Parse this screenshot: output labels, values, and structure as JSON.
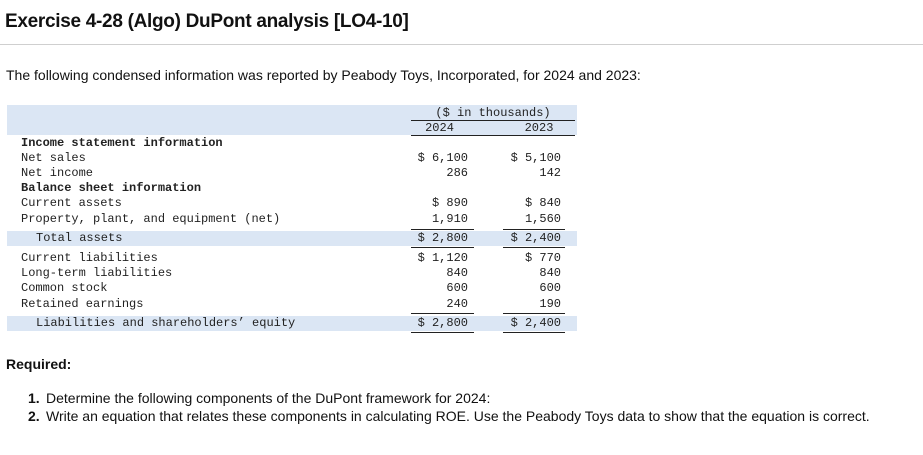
{
  "header": {
    "title": "Exercise 4-28 (Algo) DuPont analysis [LO4-10]",
    "intro": "The following condensed information was reported by Peabody Toys, Incorporated, for 2024 and 2023:"
  },
  "table": {
    "group_header": "($ in thousands)",
    "years": [
      "2024",
      "2023"
    ],
    "rows": [
      {
        "label": "Income statement information",
        "v2024": "",
        "v2023": ""
      },
      {
        "label": "Net sales",
        "v2024": "$ 6,100",
        "v2023": "$ 5,100"
      },
      {
        "label": "Net income",
        "v2024": "286",
        "v2023": "142"
      },
      {
        "label": "Balance sheet information",
        "v2024": "",
        "v2023": ""
      },
      {
        "label": "Current assets",
        "v2024": "$ 890",
        "v2023": "$ 840"
      },
      {
        "label": "Property, plant, and equipment (net)",
        "v2024": "1,910",
        "v2023": "1,560"
      },
      {
        "label": "Total assets",
        "v2024": "$ 2,800",
        "v2023": "$ 2,400"
      },
      {
        "label": "Current liabilities",
        "v2024": "$ 1,120",
        "v2023": "$ 770"
      },
      {
        "label": "Long-term liabilities",
        "v2024": "840",
        "v2023": "840"
      },
      {
        "label": "Common stock",
        "v2024": "600",
        "v2023": "600"
      },
      {
        "label": "Retained earnings",
        "v2024": "240",
        "v2023": "190"
      },
      {
        "label": "Liabilities and shareholders’ equity",
        "v2024": "$ 2,800",
        "v2023": "$ 2,400"
      }
    ]
  },
  "required": {
    "heading": "Required:",
    "items": [
      {
        "num": "1.",
        "text": "Determine the following components of the DuPont framework for 2024:"
      },
      {
        "num": "2.",
        "text": "Write an equation that relates these components in calculating ROE. Use the Peabody Toys data to show that the equation is correct."
      }
    ]
  }
}
